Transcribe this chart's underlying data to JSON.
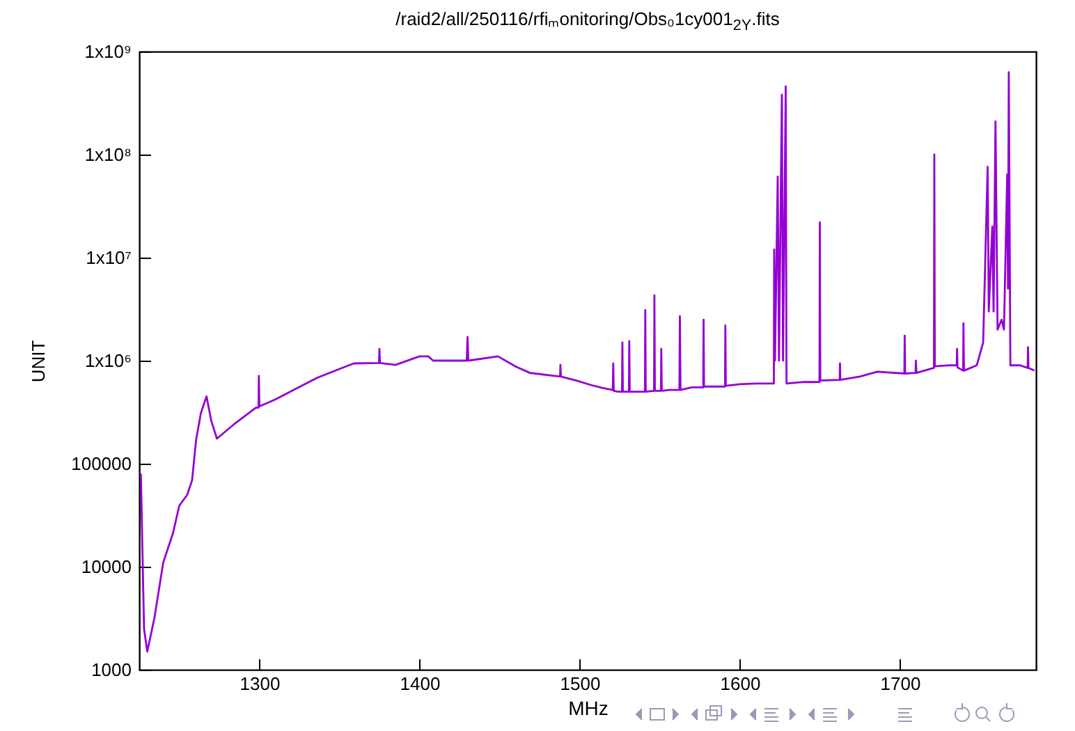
{
  "chart_data": {
    "type": "line",
    "title": "/raid2/all/250116/rfiₘonitoring/Obs₀1cy001$_{2Y}$.fits",
    "xlabel": "MHz",
    "ylabel": "UNIT",
    "log": "y",
    "grid": false,
    "marker": "none",
    "line_style": "solid",
    "xlim": [
      1225,
      1785
    ],
    "xticks": [
      1300,
      1400,
      1500,
      1600,
      1700
    ],
    "ylim": [
      1000,
      1000000000
    ],
    "yticks": [
      1000,
      10000,
      100000,
      {
        "value": 1000000,
        "label": "1x10⁶"
      },
      {
        "value": 10000000,
        "label": "1x10⁷"
      },
      {
        "value": 100000000,
        "label": "1x10⁸"
      },
      {
        "value": 1000000000,
        "label": "1x10⁹"
      }
    ],
    "x": [
      1226,
      1228,
      1230,
      1234.5,
      1240,
      1246,
      1250,
      1255,
      1258,
      1260.5,
      1263.5,
      1267,
      1270,
      1273.5,
      1284,
      1298,
      1299.5,
      1299.7,
      1300,
      1310,
      1321.5,
      1336,
      1350,
      1359,
      1374.7,
      1375,
      1375.3,
      1385,
      1400,
      1405.5,
      1408.5,
      1423,
      1429.5,
      1430,
      1430.5,
      1449,
      1460.5,
      1469,
      1487.8,
      1488,
      1488.3,
      1498,
      1507,
      1515,
      1520.7,
      1521,
      1521.3,
      1524,
      1526.5,
      1526.7,
      1527,
      1530.8,
      1531,
      1531.3,
      1536,
      1540.8,
      1541,
      1541.3,
      1546.5,
      1546.7,
      1547,
      1550.8,
      1551,
      1551.3,
      1556,
      1562.3,
      1562.6,
      1563,
      1570,
      1577.2,
      1577.4,
      1577.7,
      1585,
      1590.8,
      1591,
      1591.3,
      1600,
      1610,
      1621.3,
      1621.5,
      1622,
      1623.7,
      1624.5,
      1626.3,
      1627,
      1628.7,
      1629.2,
      1640,
      1649.8,
      1650,
      1650.3,
      1662.4,
      1662.6,
      1662.8,
      1675,
      1686,
      1702.8,
      1703,
      1703.3,
      1709.8,
      1710,
      1710.3,
      1721.3,
      1721.5,
      1721.8,
      1730,
      1735.5,
      1735.7,
      1736,
      1739.5,
      1739.7,
      1740,
      1748,
      1752,
      1754.8,
      1755.5,
      1757.7,
      1758.5,
      1759.7,
      1761,
      1763.5,
      1765,
      1767,
      1767.5,
      1768,
      1769,
      1775,
      1779.8,
      1780,
      1780.3,
      1784
    ],
    "series": [
      {
        "color": "#9400d3",
        "values": [
          80000,
          2500,
          1500,
          3200,
          11000,
          21000,
          39000,
          50000,
          69000,
          170000,
          310000,
          450000,
          260000,
          175000,
          240000,
          350000,
          350000,
          710000,
          360000,
          420000,
          520000,
          680000,
          830000,
          940000,
          950000,
          1300000,
          950000,
          910000,
          1100000,
          1100000,
          1000000,
          1000000,
          1000000,
          1700000,
          1000000,
          1100000,
          870000,
          760000,
          700000,
          910000,
          700000,
          640000,
          580000,
          540000,
          520000,
          940000,
          510000,
          500000,
          500000,
          1500000,
          500000,
          500000,
          1550000,
          500000,
          500000,
          500000,
          3100000,
          500000,
          510000,
          4300000,
          510000,
          510000,
          1300000,
          510000,
          520000,
          520000,
          2700000,
          520000,
          550000,
          550000,
          2500000,
          560000,
          560000,
          560000,
          2200000,
          570000,
          590000,
          600000,
          600000,
          12000000,
          1000000,
          61000000,
          1000000,
          380000000,
          1000000,
          460000000,
          600000,
          620000,
          620000,
          22000000,
          640000,
          650000,
          940000,
          650000,
          700000,
          780000,
          750000,
          1750000,
          750000,
          760000,
          1000000,
          760000,
          850000,
          100000000,
          880000,
          900000,
          900000,
          1300000,
          860000,
          800000,
          2300000,
          800000,
          900000,
          1500000,
          76000000,
          3000000,
          20000000,
          3000000,
          210000000,
          2000000,
          2500000,
          2000000,
          64000000,
          5000000,
          630000000,
          900000,
          900000,
          850000,
          1350000,
          850000,
          800000
        ]
      }
    ]
  }
}
